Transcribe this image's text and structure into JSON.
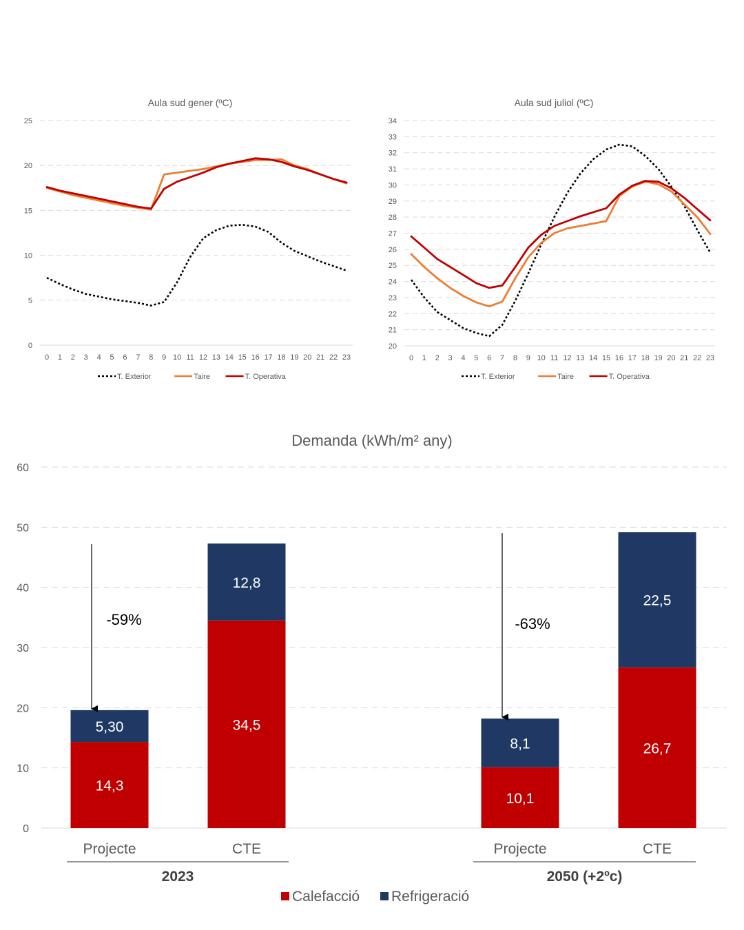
{
  "colors": {
    "exterior": "#000000",
    "taire": "#ED7D31",
    "operativa": "#C00000",
    "calefaccio": "#C00000",
    "refrigeracio": "#1F3864",
    "grid": "#D9D9D9",
    "text": "#595959"
  },
  "chart_data": [
    {
      "type": "line",
      "title": "Aula sud gener (ºC)",
      "x": [
        0,
        1,
        2,
        3,
        4,
        5,
        6,
        7,
        8,
        9,
        10,
        11,
        12,
        13,
        14,
        15,
        16,
        17,
        18,
        19,
        20,
        21,
        22,
        23
      ],
      "x_ticks": [
        "0",
        "1",
        "2",
        "3",
        "4",
        "5",
        "6",
        "7",
        "8",
        "9",
        "10",
        "11",
        "12",
        "13",
        "14",
        "15",
        "16",
        "17",
        "18",
        "19",
        "20",
        "21",
        "22",
        "23"
      ],
      "ylim": [
        0,
        25
      ],
      "y_ticks": [
        "0",
        "5",
        "10",
        "15",
        "20",
        "25"
      ],
      "grid": true,
      "legend_position": "bottom",
      "series": [
        {
          "name": "T. Exterior",
          "key": "exterior",
          "style": "dotted",
          "values": [
            7.5,
            6.8,
            6.2,
            5.7,
            5.4,
            5.1,
            4.9,
            4.7,
            4.4,
            4.8,
            7.0,
            9.8,
            11.9,
            12.8,
            13.3,
            13.4,
            13.2,
            12.6,
            11.4,
            10.5,
            9.9,
            9.3,
            8.8,
            8.3
          ]
        },
        {
          "name": "Taire",
          "key": "taire",
          "style": "solid",
          "values": [
            17.5,
            17.1,
            16.7,
            16.4,
            16.1,
            15.8,
            15.5,
            15.3,
            15.1,
            19.0,
            19.2,
            19.4,
            19.6,
            19.9,
            20.2,
            20.4,
            20.6,
            20.6,
            20.7,
            20.0,
            19.6,
            19.0,
            18.5,
            18.0
          ]
        },
        {
          "name": "T. Operativa",
          "key": "operativa",
          "style": "solid",
          "values": [
            17.6,
            17.2,
            16.9,
            16.6,
            16.3,
            16.0,
            15.7,
            15.4,
            15.2,
            17.4,
            18.2,
            18.7,
            19.2,
            19.8,
            20.2,
            20.5,
            20.8,
            20.7,
            20.4,
            19.9,
            19.5,
            19.0,
            18.5,
            18.1
          ]
        }
      ]
    },
    {
      "type": "line",
      "title": "Aula sud juliol (ºC)",
      "x": [
        0,
        1,
        2,
        3,
        4,
        5,
        6,
        7,
        8,
        9,
        10,
        11,
        12,
        13,
        14,
        15,
        16,
        17,
        18,
        19,
        20,
        21,
        22,
        23
      ],
      "x_ticks": [
        "0",
        "1",
        "2",
        "3",
        "4",
        "5",
        "6",
        "7",
        "8",
        "9",
        "10",
        "11",
        "12",
        "13",
        "14",
        "15",
        "16",
        "17",
        "18",
        "19",
        "20",
        "21",
        "22",
        "23"
      ],
      "ylim": [
        20,
        34
      ],
      "y_ticks": [
        "20",
        "21",
        "22",
        "23",
        "24",
        "25",
        "26",
        "27",
        "28",
        "29",
        "30",
        "31",
        "32",
        "33",
        "34"
      ],
      "grid": true,
      "legend_position": "bottom",
      "series": [
        {
          "name": "T. Exterior",
          "key": "exterior",
          "style": "dotted",
          "values": [
            24.1,
            23.0,
            22.1,
            21.6,
            21.1,
            20.8,
            20.6,
            21.3,
            22.8,
            24.5,
            26.3,
            28.0,
            29.5,
            30.7,
            31.6,
            32.2,
            32.5,
            32.4,
            31.8,
            31.0,
            29.9,
            28.7,
            27.2,
            25.8
          ]
        },
        {
          "name": "Taire",
          "key": "taire",
          "style": "solid",
          "values": [
            25.7,
            24.9,
            24.2,
            23.6,
            23.1,
            22.7,
            22.45,
            22.75,
            24.2,
            25.5,
            26.4,
            27.0,
            27.3,
            27.45,
            27.6,
            27.75,
            29.3,
            29.9,
            30.2,
            30.05,
            29.6,
            28.8,
            28.0,
            26.95
          ]
        },
        {
          "name": "T. Operativa",
          "key": "operativa",
          "style": "solid",
          "values": [
            26.8,
            26.1,
            25.4,
            24.9,
            24.4,
            23.9,
            23.6,
            23.75,
            24.9,
            26.1,
            26.9,
            27.45,
            27.75,
            28.05,
            28.3,
            28.55,
            29.4,
            29.95,
            30.25,
            30.2,
            29.8,
            29.2,
            28.5,
            27.8
          ]
        }
      ]
    },
    {
      "type": "bar",
      "stacked": true,
      "title": "Demanda (kWh/m² any)",
      "ylim": [
        0,
        60
      ],
      "y_ticks": [
        "0",
        "10",
        "20",
        "30",
        "40",
        "50",
        "60"
      ],
      "grid": true,
      "legend_position": "bottom",
      "categories": [
        "Projecte",
        "CTE",
        "Projecte",
        "CTE"
      ],
      "groups": [
        {
          "label": "2023",
          "bars": [
            0,
            1
          ]
        },
        {
          "label": "2050 (+2ºc)",
          "bars": [
            2,
            3
          ]
        }
      ],
      "series": [
        {
          "name": "Calefacció",
          "key": "calefaccio",
          "values": [
            14.3,
            34.5,
            10.1,
            26.7
          ],
          "labels": [
            "14,3",
            "34,5",
            "10,1",
            "26,7"
          ]
        },
        {
          "name": "Refrigeració",
          "key": "refrigeracio",
          "values": [
            5.3,
            12.8,
            8.1,
            22.5
          ],
          "labels": [
            "5,30",
            "12,8",
            "8,1",
            "22,5"
          ]
        }
      ],
      "annotations": [
        {
          "text": "-59%",
          "group": 0,
          "from": 47.3,
          "to": 19.6
        },
        {
          "text": "-63%",
          "group": 1,
          "from": 49.2,
          "to": 18.2
        }
      ]
    }
  ]
}
